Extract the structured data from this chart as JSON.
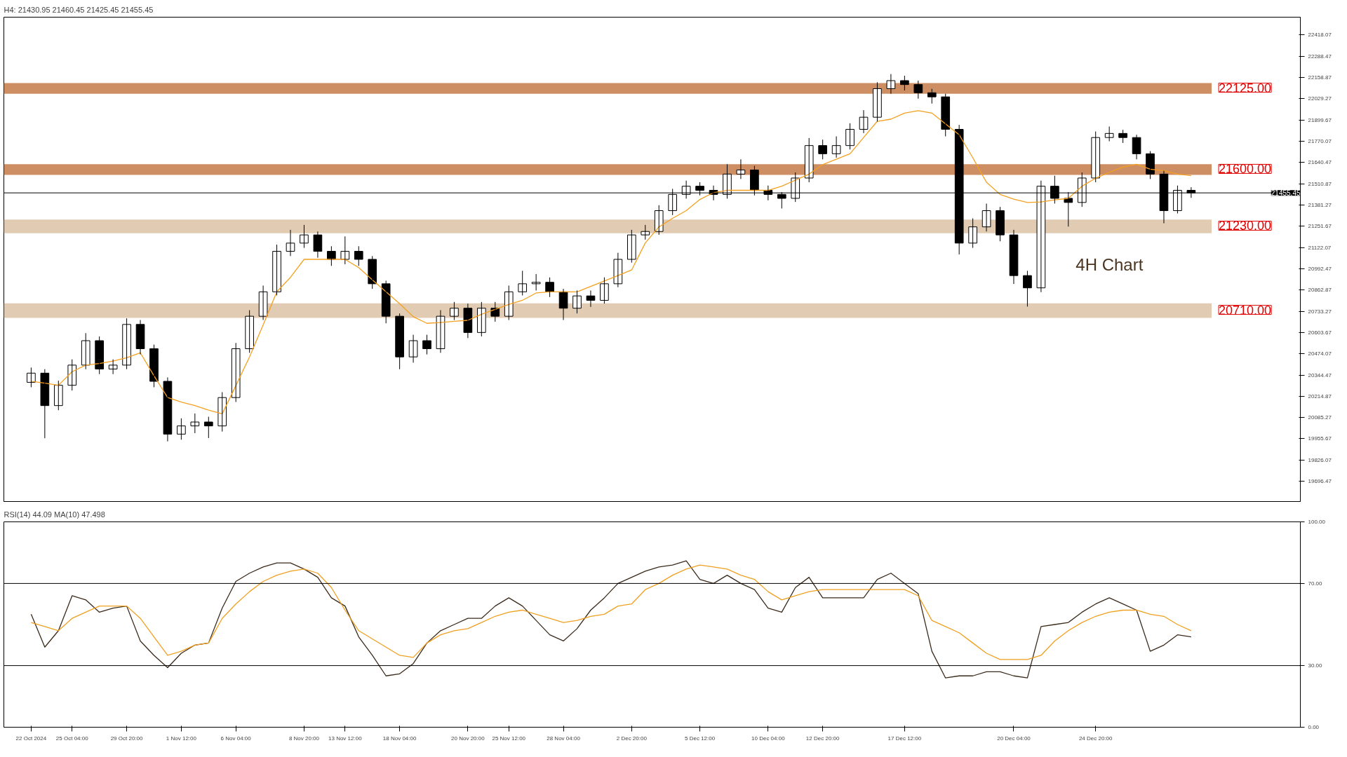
{
  "chart_data": [
    {
      "type": "candlestick",
      "title": "H4:  21430.95 21460.45 21425.45 21455.45",
      "categories": [
        null,
        null,
        null,
        null,
        null,
        null,
        null,
        null,
        null,
        null,
        null,
        null,
        null,
        null,
        null,
        null,
        null,
        null,
        null,
        null,
        null,
        null,
        null,
        null,
        null,
        null,
        null,
        null,
        null,
        null,
        null,
        null,
        null,
        null,
        null,
        null,
        null,
        null,
        null,
        null,
        null,
        null,
        null,
        null,
        null,
        null,
        null,
        null,
        null,
        null,
        null,
        null,
        null,
        null,
        null,
        null,
        null,
        null,
        null,
        null,
        null,
        null,
        null,
        null,
        null,
        null,
        null,
        null,
        null,
        null,
        null,
        null,
        null,
        null,
        null,
        null,
        null,
        null,
        null,
        null,
        null,
        null,
        null,
        null,
        null,
        null
      ],
      "ohlc": [
        [
          20300,
          20390,
          20270,
          20356
        ],
        [
          20356,
          20380,
          19959,
          20158
        ],
        [
          20158,
          20310,
          20130,
          20282
        ],
        [
          20282,
          20440,
          20250,
          20405
        ],
        [
          20405,
          20600,
          20380,
          20554
        ],
        [
          20554,
          20580,
          20350,
          20381
        ],
        [
          20381,
          20440,
          20350,
          20405
        ],
        [
          20405,
          20690,
          20380,
          20653
        ],
        [
          20653,
          20680,
          20470,
          20505
        ],
        [
          20505,
          20530,
          20270,
          20306
        ],
        [
          20306,
          20330,
          19940,
          19984
        ],
        [
          19984,
          20080,
          19950,
          20034
        ],
        [
          20034,
          20110,
          19990,
          20058
        ],
        [
          20058,
          20090,
          19960,
          20034
        ],
        [
          20034,
          20240,
          20000,
          20207
        ],
        [
          20207,
          20540,
          20180,
          20505
        ],
        [
          20505,
          20740,
          20480,
          20703
        ],
        [
          20703,
          20890,
          20680,
          20852
        ],
        [
          20852,
          21140,
          20830,
          21099
        ],
        [
          21099,
          21230,
          21070,
          21149
        ],
        [
          21149,
          21260,
          21120,
          21199
        ],
        [
          21199,
          21220,
          21060,
          21099
        ],
        [
          21099,
          21130,
          21010,
          21050
        ],
        [
          21050,
          21190,
          21020,
          21099
        ],
        [
          21099,
          21130,
          21010,
          21050
        ],
        [
          21050,
          21070,
          20870,
          20901
        ],
        [
          20901,
          20920,
          20660,
          20703
        ],
        [
          20703,
          20720,
          20380,
          20455
        ],
        [
          20455,
          20590,
          20420,
          20554
        ],
        [
          20554,
          20590,
          20470,
          20505
        ],
        [
          20505,
          20740,
          20480,
          20703
        ],
        [
          20703,
          20790,
          20680,
          20752
        ],
        [
          20752,
          20780,
          20570,
          20604
        ],
        [
          20604,
          20790,
          20580,
          20752
        ],
        [
          20752,
          20790,
          20670,
          20703
        ],
        [
          20703,
          20890,
          20680,
          20852
        ],
        [
          20852,
          20980,
          20830,
          20901
        ],
        [
          20901,
          20960,
          20860,
          20910
        ],
        [
          20910,
          20940,
          20820,
          20852
        ],
        [
          20852,
          20870,
          20680,
          20752
        ],
        [
          20752,
          20860,
          20720,
          20827
        ],
        [
          20827,
          20860,
          20760,
          20800
        ],
        [
          20800,
          20940,
          20780,
          20901
        ],
        [
          20901,
          21090,
          20880,
          21050
        ],
        [
          21050,
          21230,
          21030,
          21199
        ],
        [
          21199,
          21260,
          21170,
          21220
        ],
        [
          21220,
          21380,
          21200,
          21347
        ],
        [
          21347,
          21480,
          21320,
          21446
        ],
        [
          21446,
          21530,
          21420,
          21496
        ],
        [
          21496,
          21520,
          21440,
          21471
        ],
        [
          21471,
          21500,
          21410,
          21446
        ],
        [
          21446,
          21630,
          21420,
          21570
        ],
        [
          21570,
          21660,
          21540,
          21595
        ],
        [
          21595,
          21620,
          21440,
          21471
        ],
        [
          21471,
          21500,
          21410,
          21446
        ],
        [
          21446,
          21460,
          21360,
          21422
        ],
        [
          21422,
          21580,
          21400,
          21546
        ],
        [
          21546,
          21790,
          21520,
          21744
        ],
        [
          21744,
          21780,
          21660,
          21694
        ],
        [
          21694,
          21800,
          21670,
          21744
        ],
        [
          21744,
          21880,
          21720,
          21843
        ],
        [
          21843,
          21960,
          21820,
          21917
        ],
        [
          21917,
          22130,
          21890,
          22091
        ],
        [
          22091,
          22180,
          22060,
          22140
        ],
        [
          22140,
          22170,
          22080,
          22116
        ],
        [
          22116,
          22140,
          22030,
          22066
        ],
        [
          22066,
          22090,
          22000,
          22041
        ],
        [
          22041,
          22060,
          21800,
          21843
        ],
        [
          21843,
          21870,
          21080,
          21149
        ],
        [
          21149,
          21300,
          21120,
          21248
        ],
        [
          21248,
          21390,
          21220,
          21347
        ],
        [
          21347,
          21370,
          21160,
          21199
        ],
        [
          21199,
          21230,
          20900,
          20951
        ],
        [
          20951,
          20980,
          20762,
          20876
        ],
        [
          20876,
          21530,
          20850,
          21496
        ],
        [
          21496,
          21560,
          21390,
          21422
        ],
        [
          21422,
          21460,
          21250,
          21397
        ],
        [
          21397,
          21580,
          21370,
          21546
        ],
        [
          21546,
          21830,
          21520,
          21793
        ],
        [
          21793,
          21860,
          21770,
          21818
        ],
        [
          21818,
          21840,
          21760,
          21793
        ],
        [
          21793,
          21810,
          21660,
          21694
        ],
        [
          21694,
          21710,
          21540,
          21570
        ],
        [
          21570,
          21590,
          21270,
          21347
        ],
        [
          21347,
          21500,
          21330,
          21471
        ],
        [
          21471,
          21490,
          21425,
          21455.45
        ]
      ],
      "series": [
        {
          "type": "line",
          "color": "#f5a020",
          "values": [
            20307,
            20295,
            20282,
            20365,
            20405,
            20415,
            20430,
            20450,
            20480,
            20340,
            20207,
            20180,
            20158,
            20130,
            20108,
            20280,
            20455,
            20650,
            20852,
            20940,
            21050,
            21050,
            21050,
            21050,
            21000,
            20925,
            20852,
            20780,
            20700,
            20660,
            20665,
            20672,
            20678,
            20715,
            20745,
            20775,
            20800,
            20845,
            20852,
            20852,
            20852,
            20885,
            20918,
            20951,
            20985,
            21150,
            21248,
            21300,
            21347,
            21415,
            21457,
            21471,
            21471,
            21471,
            21471,
            21496,
            21533,
            21570,
            21628,
            21661,
            21694,
            21793,
            21892,
            21905,
            21942,
            21957,
            21942,
            21876,
            21810,
            21670,
            21520,
            21446,
            21417,
            21397,
            21400,
            21413,
            21422,
            21496,
            21545,
            21580,
            21613,
            21630,
            21600,
            21590,
            21570,
            21560
          ]
        }
      ],
      "ylim": [
        19573,
        22527
      ],
      "yticks": [
        22418.07,
        22288.47,
        22158.87,
        22029.27,
        21899.67,
        21770.07,
        21640.47,
        21510.87,
        21381.27,
        21251.67,
        21122.07,
        20992.47,
        20862.87,
        20733.27,
        20603.67,
        20474.07,
        20344.47,
        20214.87,
        20085.27,
        19955.67,
        19826.07,
        19696.47
      ],
      "tick_labels": "y",
      "grid": false,
      "ref_lines": [
        {
          "axis": "y",
          "value": 21455.45,
          "label": "21455.45",
          "color": "#000000"
        }
      ],
      "bands": [
        {
          "axis": "y",
          "from": 22060,
          "to": 22125,
          "label": "22125.00",
          "color": "#c47a48"
        },
        {
          "axis": "y",
          "from": 21565,
          "to": 21630,
          "label": "21600.00",
          "color": "#c47a48"
        },
        {
          "axis": "y",
          "from": 21209,
          "to": 21293,
          "label": "21230.00",
          "color": "#dcc2a4"
        },
        {
          "axis": "y",
          "from": 20693,
          "to": 20782,
          "label": "20710.00",
          "color": "#dcc2a4"
        }
      ],
      "annotations": [
        "4H Chart"
      ]
    },
    {
      "type": "line",
      "title": "RSI(14) 44.09 MA(10) 47.498",
      "categories": [
        "22 Oct 2024",
        null,
        null,
        "25 Oct 04:00",
        null,
        null,
        null,
        "29 Oct 20:00",
        null,
        null,
        null,
        "1 Nov 12:00",
        null,
        null,
        null,
        "6 Nov 04:00",
        null,
        null,
        null,
        null,
        "8 Nov 20:00",
        null,
        null,
        "13 Nov 12:00",
        null,
        null,
        null,
        "18 Nov 04:00",
        null,
        null,
        null,
        null,
        "20 Nov 20:00",
        null,
        null,
        "25 Nov 12:00",
        null,
        null,
        null,
        "28 Nov 04:00",
        null,
        null,
        null,
        null,
        "2 Dec 20:00",
        null,
        null,
        null,
        null,
        "5 Dec 12:00",
        null,
        null,
        null,
        null,
        "10 Dec 04:00",
        null,
        null,
        null,
        "12 Dec 20:00",
        null,
        null,
        null,
        null,
        null,
        "17 Dec 12:00",
        null,
        null,
        null,
        null,
        null,
        null,
        null,
        "20 Dec 04:00",
        null,
        null,
        null,
        null,
        null,
        "24 Dec 20:00",
        null,
        null,
        null,
        null,
        null,
        null,
        null
      ],
      "series": [
        {
          "color": "#3b2a1a",
          "values": [
            55,
            39,
            47,
            64,
            62,
            56,
            58,
            59,
            42,
            35,
            29,
            36,
            40,
            41,
            58,
            71,
            75,
            78,
            80,
            80,
            77,
            73,
            63,
            59,
            44,
            35,
            25,
            26,
            31,
            41,
            47,
            50,
            53,
            53,
            59,
            63,
            59,
            52,
            45,
            42,
            48,
            57,
            63,
            70,
            73,
            76,
            78,
            79,
            81,
            72,
            70,
            74,
            70,
            67,
            58,
            56,
            68,
            73,
            63,
            63,
            63,
            63,
            72,
            75,
            70,
            65,
            37,
            24,
            25,
            25,
            27,
            27,
            25,
            24,
            49,
            50,
            51,
            56,
            60,
            63,
            60,
            57,
            37,
            40,
            45,
            44
          ]
        },
        {
          "color": "#f0a020",
          "values": [
            51,
            49,
            47,
            53,
            56,
            59,
            59,
            59,
            53,
            44,
            35,
            37,
            40,
            41,
            53,
            60,
            66,
            71,
            74,
            76,
            77,
            75,
            68,
            57,
            47,
            43,
            39,
            35,
            34,
            41,
            45,
            47,
            48,
            51,
            54,
            56,
            57,
            55,
            53,
            51,
            52,
            54,
            55,
            59,
            60,
            67,
            70,
            74,
            77,
            79,
            78,
            77,
            74,
            72,
            66,
            62,
            64,
            66,
            67,
            67,
            67,
            67,
            67,
            67,
            67,
            64,
            52,
            49,
            46,
            41,
            36,
            33,
            33,
            33,
            35,
            42,
            47,
            51,
            54,
            56,
            57,
            57,
            55,
            54,
            50,
            47
          ]
        }
      ],
      "ylim": [
        0,
        100
      ],
      "yticks": [
        {
          "value": 0,
          "label": "0.00"
        },
        {
          "value": 30,
          "label": "30.00"
        },
        {
          "value": 70,
          "label": "70.00"
        },
        {
          "value": 100,
          "label": "100.00"
        }
      ],
      "grid": false,
      "ref_lines": [
        {
          "axis": "y",
          "value": 70,
          "color": "#000000"
        },
        {
          "axis": "y",
          "value": 30,
          "color": "#000000"
        }
      ]
    }
  ]
}
